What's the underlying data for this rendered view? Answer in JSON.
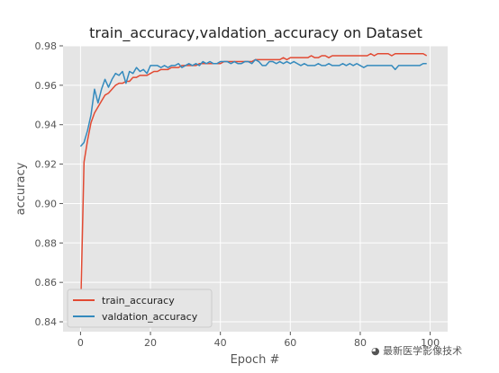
{
  "chart_data": {
    "type": "line",
    "title": "train_accuracy,valdation_accuracy on Dataset",
    "xlabel": "Epoch #",
    "ylabel": "accuracy",
    "xlim": [
      -5,
      105
    ],
    "ylim": [
      0.835,
      0.98
    ],
    "xticks": [
      0,
      20,
      40,
      60,
      80,
      100
    ],
    "yticks": [
      0.84,
      0.86,
      0.88,
      0.9,
      0.92,
      0.94,
      0.96,
      0.98
    ],
    "ytick_labels": [
      "0.84",
      "0.86",
      "0.88",
      "0.90",
      "0.92",
      "0.94",
      "0.96",
      "0.98"
    ],
    "grid": true,
    "legend_position": "lower-left",
    "series": [
      {
        "name": "train_accuracy",
        "color": "#e24a33",
        "values": [
          0.843,
          0.921,
          0.932,
          0.941,
          0.946,
          0.949,
          0.952,
          0.955,
          0.956,
          0.958,
          0.96,
          0.961,
          0.961,
          0.962,
          0.962,
          0.964,
          0.964,
          0.965,
          0.965,
          0.965,
          0.966,
          0.967,
          0.967,
          0.968,
          0.968,
          0.968,
          0.969,
          0.969,
          0.969,
          0.97,
          0.97,
          0.97,
          0.97,
          0.97,
          0.971,
          0.971,
          0.971,
          0.971,
          0.971,
          0.971,
          0.971,
          0.972,
          0.972,
          0.972,
          0.972,
          0.972,
          0.972,
          0.972,
          0.972,
          0.972,
          0.973,
          0.973,
          0.973,
          0.973,
          0.973,
          0.973,
          0.973,
          0.973,
          0.974,
          0.973,
          0.974,
          0.974,
          0.974,
          0.974,
          0.974,
          0.974,
          0.975,
          0.974,
          0.974,
          0.975,
          0.975,
          0.974,
          0.975,
          0.975,
          0.975,
          0.975,
          0.975,
          0.975,
          0.975,
          0.975,
          0.975,
          0.975,
          0.975,
          0.976,
          0.975,
          0.976,
          0.976,
          0.976,
          0.976,
          0.975,
          0.976,
          0.976,
          0.976,
          0.976,
          0.976,
          0.976,
          0.976,
          0.976,
          0.976,
          0.975
        ]
      },
      {
        "name": "valdation_accuracy",
        "color": "#348abd",
        "values": [
          0.929,
          0.931,
          0.937,
          0.945,
          0.958,
          0.951,
          0.958,
          0.963,
          0.959,
          0.963,
          0.966,
          0.965,
          0.967,
          0.961,
          0.967,
          0.966,
          0.969,
          0.967,
          0.968,
          0.966,
          0.97,
          0.97,
          0.97,
          0.969,
          0.97,
          0.969,
          0.97,
          0.97,
          0.971,
          0.969,
          0.97,
          0.971,
          0.97,
          0.971,
          0.97,
          0.972,
          0.971,
          0.972,
          0.971,
          0.971,
          0.972,
          0.972,
          0.972,
          0.971,
          0.972,
          0.971,
          0.971,
          0.972,
          0.972,
          0.971,
          0.973,
          0.972,
          0.97,
          0.97,
          0.972,
          0.972,
          0.971,
          0.972,
          0.971,
          0.972,
          0.971,
          0.972,
          0.971,
          0.97,
          0.971,
          0.97,
          0.97,
          0.97,
          0.971,
          0.97,
          0.97,
          0.971,
          0.97,
          0.97,
          0.97,
          0.971,
          0.97,
          0.971,
          0.97,
          0.971,
          0.97,
          0.969,
          0.97,
          0.97,
          0.97,
          0.97,
          0.97,
          0.97,
          0.97,
          0.97,
          0.968,
          0.97,
          0.97,
          0.97,
          0.97,
          0.97,
          0.97,
          0.97,
          0.971,
          0.971
        ]
      }
    ]
  },
  "watermark": {
    "text": "最新医学影像技术"
  }
}
